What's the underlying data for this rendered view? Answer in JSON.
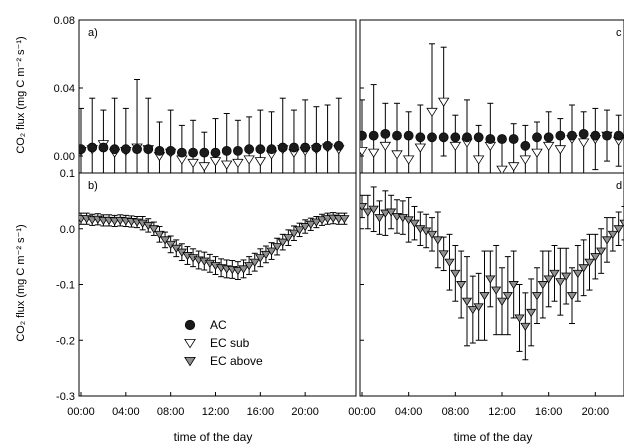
{
  "chart_data": {
    "type": "scatter",
    "panels_note": "multi-panel time series of CO2 flux with error bars",
    "x_tick_labels": [
      "00:00",
      "04:00",
      "08:00",
      "12:00",
      "16:00",
      "20:00"
    ],
    "xlabel": "time of the day",
    "x_units": "hours",
    "legend": {
      "entries": [
        {
          "name": "AC",
          "marker": "circle",
          "color": "#1a1a1a"
        },
        {
          "name": "EC sub",
          "marker": "triangle-down",
          "color": "#ffffff"
        },
        {
          "name": "EC above",
          "marker": "triangle-down",
          "color": "#8f8f8f"
        }
      ]
    },
    "panels": [
      {
        "label": "a)",
        "ylim": [
          -0.01,
          0.08
        ],
        "yticks": [
          "0.08",
          "0.04",
          "0.00"
        ],
        "ytick_values": [
          0.08,
          0.04,
          0.0
        ],
        "series": [
          {
            "name": "AC",
            "x": [
              0,
              1,
              2,
              3,
              4,
              5,
              6,
              7,
              8,
              9,
              10,
              11,
              12,
              13,
              14,
              15,
              16,
              17,
              18,
              19,
              20,
              21,
              22,
              23
            ],
            "y": [
              0.004,
              0.005,
              0.005,
              0.004,
              0.004,
              0.004,
              0.004,
              0.003,
              0.003,
              0.002,
              0.002,
              0.002,
              0.002,
              0.003,
              0.003,
              0.004,
              0.004,
              0.004,
              0.005,
              0.005,
              0.005,
              0.005,
              0.006,
              0.006
            ],
            "err": [
              0.002,
              0.002,
              0.002,
              0.002,
              0.002,
              0.002,
              0.002,
              0.002,
              0.002,
              0.002,
              0.002,
              0.002,
              0.002,
              0.002,
              0.002,
              0.002,
              0.002,
              0.002,
              0.002,
              0.002,
              0.002,
              0.002,
              0.002,
              0.002
            ]
          },
          {
            "name": "EC sub",
            "x": [
              0,
              1,
              2,
              3,
              4,
              5,
              6,
              7,
              8,
              9,
              10,
              11,
              12,
              13,
              14,
              15,
              16,
              17,
              18,
              19,
              20,
              21,
              22,
              23
            ],
            "y": [
              0.003,
              0.004,
              0.007,
              0.002,
              0.003,
              0.005,
              0.004,
              0.0,
              0.002,
              -0.002,
              -0.004,
              -0.006,
              -0.003,
              -0.005,
              -0.004,
              -0.002,
              -0.003,
              0.001,
              0.004,
              0.002,
              0.003,
              0.004,
              0.005,
              0.004
            ],
            "err": [
              0.025,
              0.03,
              0.02,
              0.032,
              0.025,
              0.04,
              0.03,
              0.02,
              0.025,
              0.02,
              0.025,
              0.02,
              0.025,
              0.03,
              0.025,
              0.025,
              0.03,
              0.025,
              0.03,
              0.025,
              0.03,
              0.025,
              0.025,
              0.03
            ]
          }
        ]
      },
      {
        "label": "b)",
        "ylim": [
          -0.3,
          0.1
        ],
        "yticks": [
          "0.1",
          "0.0",
          "-0.1",
          "-0.2",
          "-0.3"
        ],
        "ytick_values": [
          0.1,
          0.0,
          -0.1,
          -0.2,
          -0.3
        ],
        "series": [
          {
            "name": "EC above",
            "x": [
              0,
              0.5,
              1,
              1.5,
              2,
              2.5,
              3,
              3.5,
              4,
              4.5,
              5,
              5.5,
              6,
              6.5,
              7,
              7.5,
              8,
              8.5,
              9,
              9.5,
              10,
              10.5,
              11,
              11.5,
              12,
              12.5,
              13,
              13.5,
              14,
              14.5,
              15,
              15.5,
              16,
              16.5,
              17,
              17.5,
              18,
              18.5,
              19,
              19.5,
              20,
              20.5,
              21,
              21.5,
              22,
              22.5,
              23,
              23.5
            ],
            "y": [
              0.018,
              0.018,
              0.016,
              0.017,
              0.015,
              0.015,
              0.014,
              0.015,
              0.014,
              0.013,
              0.012,
              0.01,
              0.006,
              0.0,
              -0.01,
              -0.02,
              -0.028,
              -0.035,
              -0.042,
              -0.048,
              -0.052,
              -0.056,
              -0.058,
              -0.062,
              -0.066,
              -0.07,
              -0.072,
              -0.073,
              -0.075,
              -0.072,
              -0.066,
              -0.06,
              -0.052,
              -0.046,
              -0.04,
              -0.032,
              -0.024,
              -0.016,
              -0.008,
              -0.002,
              0.004,
              0.008,
              0.012,
              0.016,
              0.018,
              0.019,
              0.018,
              0.018
            ],
            "err": [
              0.01,
              0.01,
              0.01,
              0.01,
              0.01,
              0.01,
              0.01,
              0.01,
              0.01,
              0.01,
              0.01,
              0.012,
              0.012,
              0.012,
              0.014,
              0.014,
              0.015,
              0.015,
              0.015,
              0.016,
              0.016,
              0.016,
              0.016,
              0.016,
              0.016,
              0.016,
              0.016,
              0.016,
              0.016,
              0.016,
              0.016,
              0.016,
              0.016,
              0.015,
              0.015,
              0.015,
              0.014,
              0.014,
              0.013,
              0.012,
              0.012,
              0.011,
              0.01,
              0.01,
              0.01,
              0.01,
              0.01,
              0.01
            ]
          }
        ]
      },
      {
        "label": "c",
        "ylim": [
          -0.01,
          0.08
        ],
        "yticks": [
          "0.08",
          "0.04",
          "0.00"
        ],
        "ytick_values": [
          0.08,
          0.04,
          0.0
        ],
        "series": [
          {
            "name": "AC",
            "x": [
              0,
              1,
              2,
              3,
              4,
              5,
              6,
              7,
              8,
              9,
              10,
              11,
              12,
              13,
              14,
              15,
              16,
              17,
              18,
              19,
              20,
              21,
              22,
              23
            ],
            "y": [
              0.012,
              0.012,
              0.013,
              0.012,
              0.012,
              0.011,
              0.011,
              0.011,
              0.011,
              0.011,
              0.011,
              0.01,
              0.01,
              0.01,
              0.006,
              0.011,
              0.011,
              0.012,
              0.012,
              0.013,
              0.012,
              0.012,
              0.012,
              0.012
            ],
            "err": [
              0.003,
              0.003,
              0.003,
              0.003,
              0.003,
              0.003,
              0.003,
              0.003,
              0.003,
              0.003,
              0.003,
              0.003,
              0.003,
              0.003,
              0.003,
              0.003,
              0.003,
              0.003,
              0.003,
              0.003,
              0.003,
              0.003,
              0.003,
              0.003
            ]
          },
          {
            "name": "EC sub",
            "x": [
              0,
              1,
              2,
              3,
              4,
              5,
              6,
              7,
              8,
              9,
              10,
              11,
              12,
              13,
              14,
              15,
              16,
              17,
              18,
              19,
              20,
              21,
              22,
              23
            ],
            "y": [
              0.003,
              0.002,
              0.006,
              0.001,
              -0.002,
              0.005,
              0.026,
              0.032,
              0.006,
              0.008,
              -0.002,
              0.006,
              -0.008,
              -0.006,
              -0.002,
              0.002,
              0.006,
              0.004,
              0.01,
              0.008,
              0.01,
              0.012,
              0.009,
              0.01
            ],
            "err": [
              0.03,
              0.04,
              0.025,
              0.03,
              0.028,
              0.025,
              0.04,
              0.032,
              0.018,
              0.025,
              0.02,
              0.025,
              0.02,
              0.025,
              0.02,
              0.018,
              0.02,
              0.018,
              0.02,
              0.018,
              0.018,
              0.015,
              0.015,
              0.015
            ]
          }
        ]
      },
      {
        "label": "d",
        "ylim": [
          -0.3,
          0.1
        ],
        "yticks": [
          "0.1",
          "0.0",
          "-0.1",
          "-0.2",
          "-0.3"
        ],
        "ytick_values": [
          0.1,
          0.0,
          -0.1,
          -0.2,
          -0.3
        ],
        "series": [
          {
            "name": "EC above",
            "x": [
              0,
              0.5,
              1,
              1.5,
              2,
              2.5,
              3,
              3.5,
              4,
              4.5,
              5,
              5.5,
              6,
              6.5,
              7,
              7.5,
              8,
              8.5,
              9,
              9.5,
              10,
              10.5,
              11,
              11.5,
              12,
              12.5,
              13,
              13.5,
              14,
              14.5,
              15,
              15.5,
              16,
              16.5,
              17,
              17.5,
              18,
              18.5,
              19,
              19.5,
              20,
              20.5,
              21,
              21.5,
              22,
              22.5,
              23,
              23.5
            ],
            "y": [
              0.04,
              0.03,
              0.035,
              0.02,
              0.028,
              0.03,
              0.022,
              0.02,
              0.016,
              0.01,
              0.0,
              -0.004,
              -0.01,
              -0.02,
              -0.045,
              -0.06,
              -0.08,
              -0.1,
              -0.13,
              -0.145,
              -0.14,
              -0.12,
              -0.09,
              -0.11,
              -0.13,
              -0.12,
              -0.1,
              -0.16,
              -0.175,
              -0.15,
              -0.12,
              -0.1,
              -0.09,
              -0.08,
              -0.095,
              -0.085,
              -0.12,
              -0.08,
              -0.07,
              -0.06,
              -0.05,
              -0.04,
              -0.02,
              -0.01,
              0.0,
              0.01,
              0.025,
              0.03
            ],
            "err": [
              0.02,
              0.03,
              0.04,
              0.03,
              0.04,
              0.03,
              0.03,
              0.03,
              0.04,
              0.03,
              0.03,
              0.03,
              0.03,
              0.05,
              0.03,
              0.05,
              0.05,
              0.06,
              0.08,
              0.06,
              0.06,
              0.08,
              0.05,
              0.08,
              0.06,
              0.07,
              0.06,
              0.06,
              0.06,
              0.06,
              0.05,
              0.06,
              0.05,
              0.05,
              0.06,
              0.05,
              0.05,
              0.05,
              0.05,
              0.05,
              0.04,
              0.04,
              0.04,
              0.03,
              0.03,
              0.03,
              0.02,
              0.02
            ]
          }
        ]
      }
    ]
  },
  "labels": {
    "ylabel_top": "CO₂ flux (mg C m⁻² s⁻¹)",
    "ylabel_bottom": "CO₂ flux (mg C m⁻² s⁻¹)",
    "xlabel_left": "time of the day",
    "xlabel_right": "time of the day"
  }
}
